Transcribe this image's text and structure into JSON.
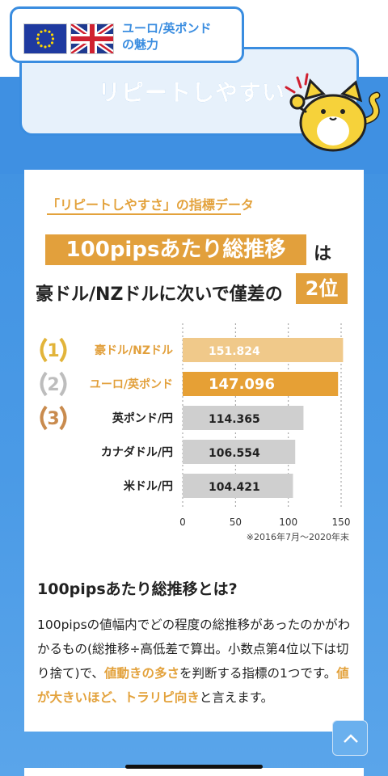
{
  "header": {
    "tag_line1": "ユーロ/英ポンド",
    "tag_line2": "の魅力",
    "title": "リピートしやすい"
  },
  "card": {
    "subtitle": "「リピートしやすさ」の指標データ",
    "headline_main": "100pipsあたり総推移",
    "headline_wa": "は",
    "headline_line2": "豪ドル/NZドルに次いで僅差の",
    "headline_rank": "2位",
    "footnote": "※2016年7月～2020年末",
    "section_title": "100pipsあたり総推移とは?",
    "body_1": "100pipsの値幅内でどの程度の総推移があったのかがわかるもの(総推移÷高低差で算出。小数点第4位以下は切り捨て)で、",
    "body_hl1": "値動きの多さ",
    "body_2": "を判断する指標の1つです。",
    "body_hl2": "値が大きいほど、トラリピ向き",
    "body_3": "と言えます。"
  },
  "chart_data": {
    "type": "bar",
    "orientation": "horizontal",
    "categories": [
      "豪ドル/NZドル",
      "ユーロ/英ポンド",
      "英ポンド/円",
      "カナダドル/円",
      "米ドル/円"
    ],
    "values": [
      151.824,
      147.096,
      114.365,
      106.554,
      104.421
    ],
    "value_labels": [
      "151.824",
      "147.096",
      "114.365",
      "106.554",
      "104.421"
    ],
    "ranks": [
      "1",
      "2",
      "3"
    ],
    "xlim": [
      0,
      150
    ],
    "xticks": [
      "0",
      "50",
      "100",
      "150"
    ],
    "colors": {
      "rank1": "#f0c98a",
      "rank2": "#e6a035",
      "other": "#cfcfcf",
      "gold": "#e2b43a",
      "silver": "#bdbdbd",
      "bronze": "#c98b4e"
    }
  },
  "colors": {
    "accent": "#e2a03c",
    "blue": "#3a8de0"
  }
}
